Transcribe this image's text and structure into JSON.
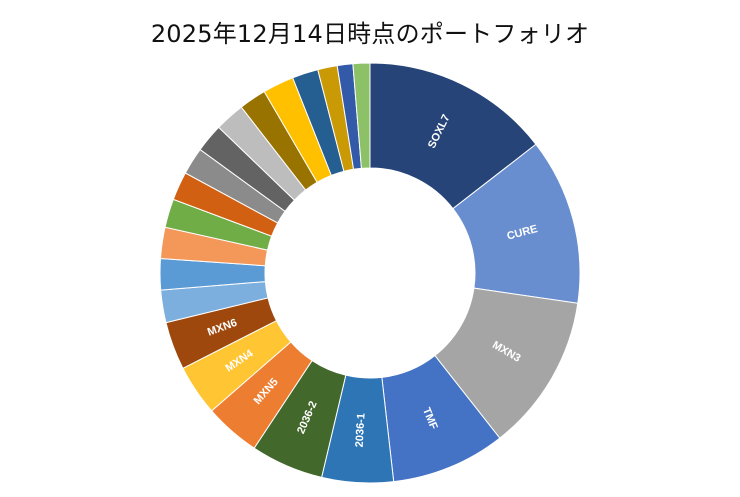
{
  "chart_data": {
    "type": "pie",
    "subtype": "donut",
    "title": "2025年12月14日時点のポートフォリオ",
    "start_angle_deg": 0,
    "direction": "clockwise",
    "center": [
      370,
      273
    ],
    "outer_radius": 210,
    "inner_radius": 105,
    "legend": "none",
    "slices": [
      {
        "label": "SOXL7",
        "value": 14.5,
        "color": "#264478",
        "show_label": true
      },
      {
        "label": "CURE",
        "value": 12.8,
        "color": "#698ED0",
        "show_label": true
      },
      {
        "label": "MXN3",
        "value": 12.1,
        "color": "#A5A5A5",
        "show_label": true
      },
      {
        "label": "TMF",
        "value": 8.8,
        "color": "#4472C4",
        "show_label": true
      },
      {
        "label": "2036-1",
        "value": 5.5,
        "color": "#2E75B6",
        "show_label": true
      },
      {
        "label": "2036-2",
        "value": 5.6,
        "color": "#43682B",
        "show_label": true
      },
      {
        "label": "MXN5",
        "value": 4.3,
        "color": "#ED7D31",
        "show_label": true
      },
      {
        "label": "MXN4",
        "value": 3.9,
        "color": "#FFC533",
        "show_label": true
      },
      {
        "label": "MXN6",
        "value": 3.7,
        "color": "#9E480E",
        "show_label": true
      },
      {
        "label": "",
        "value": 2.5,
        "color": "#7CAFDD",
        "show_label": false
      },
      {
        "label": "",
        "value": 2.4,
        "color": "#5B9BD5",
        "show_label": false
      },
      {
        "label": "",
        "value": 2.4,
        "color": "#F4985A",
        "show_label": false
      },
      {
        "label": "",
        "value": 2.2,
        "color": "#70AD47",
        "show_label": false
      },
      {
        "label": "",
        "value": 2.2,
        "color": "#D26012",
        "show_label": false
      },
      {
        "label": "",
        "value": 2.1,
        "color": "#8B8B8B",
        "show_label": false
      },
      {
        "label": "",
        "value": 2.2,
        "color": "#636363",
        "show_label": false
      },
      {
        "label": "",
        "value": 2.3,
        "color": "#BDBDBD",
        "show_label": false
      },
      {
        "label": "",
        "value": 2.1,
        "color": "#997300",
        "show_label": false
      },
      {
        "label": "",
        "value": 2.4,
        "color": "#FFC000",
        "show_label": false
      },
      {
        "label": "",
        "value": 2.0,
        "color": "#255E91",
        "show_label": false
      },
      {
        "label": "",
        "value": 1.5,
        "color": "#C99A06",
        "show_label": false
      },
      {
        "label": "",
        "value": 1.2,
        "color": "#335AA8",
        "show_label": false
      },
      {
        "label": "",
        "value": 1.3,
        "color": "#8CC168",
        "show_label": false
      }
    ]
  }
}
